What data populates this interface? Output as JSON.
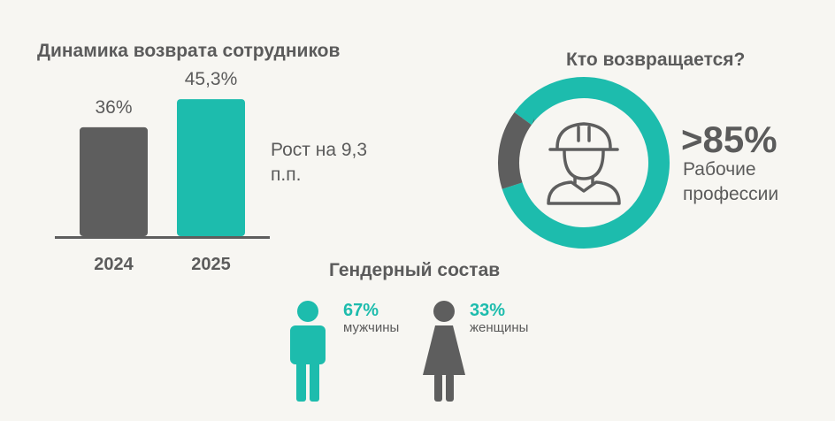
{
  "colors": {
    "accent": "#1dbcad",
    "gray": "#5e5e5e",
    "background": "#f7f6f2"
  },
  "chart_data": [
    {
      "type": "bar",
      "title": "Динамика возврата сотрудников",
      "categories": [
        "2024",
        "2025"
      ],
      "values": [
        36,
        45.3
      ],
      "value_labels": [
        "36%",
        "45,3%"
      ],
      "ylim": [
        0,
        50
      ],
      "colors": [
        "#5e5e5e",
        "#1dbcad"
      ],
      "annotation": "Рост на 9,3 п.п."
    },
    {
      "type": "pie",
      "title": "Кто возвращается?",
      "slices": [
        {
          "label": "Рабочие профессии",
          "value": 85,
          "color": "#1dbcad"
        },
        {
          "label": "",
          "value": 15,
          "color": "#5e5e5e"
        }
      ],
      "center_icon": "worker-helmet-icon",
      "value_label": ">85%",
      "label": "Рабочие профессии"
    }
  ],
  "gender": {
    "title": "Гендерный состав",
    "male": {
      "pct": "67%",
      "label": "мужчины",
      "icon": "man-icon"
    },
    "female": {
      "pct": "33%",
      "label": "женщины",
      "icon": "woman-icon"
    }
  }
}
